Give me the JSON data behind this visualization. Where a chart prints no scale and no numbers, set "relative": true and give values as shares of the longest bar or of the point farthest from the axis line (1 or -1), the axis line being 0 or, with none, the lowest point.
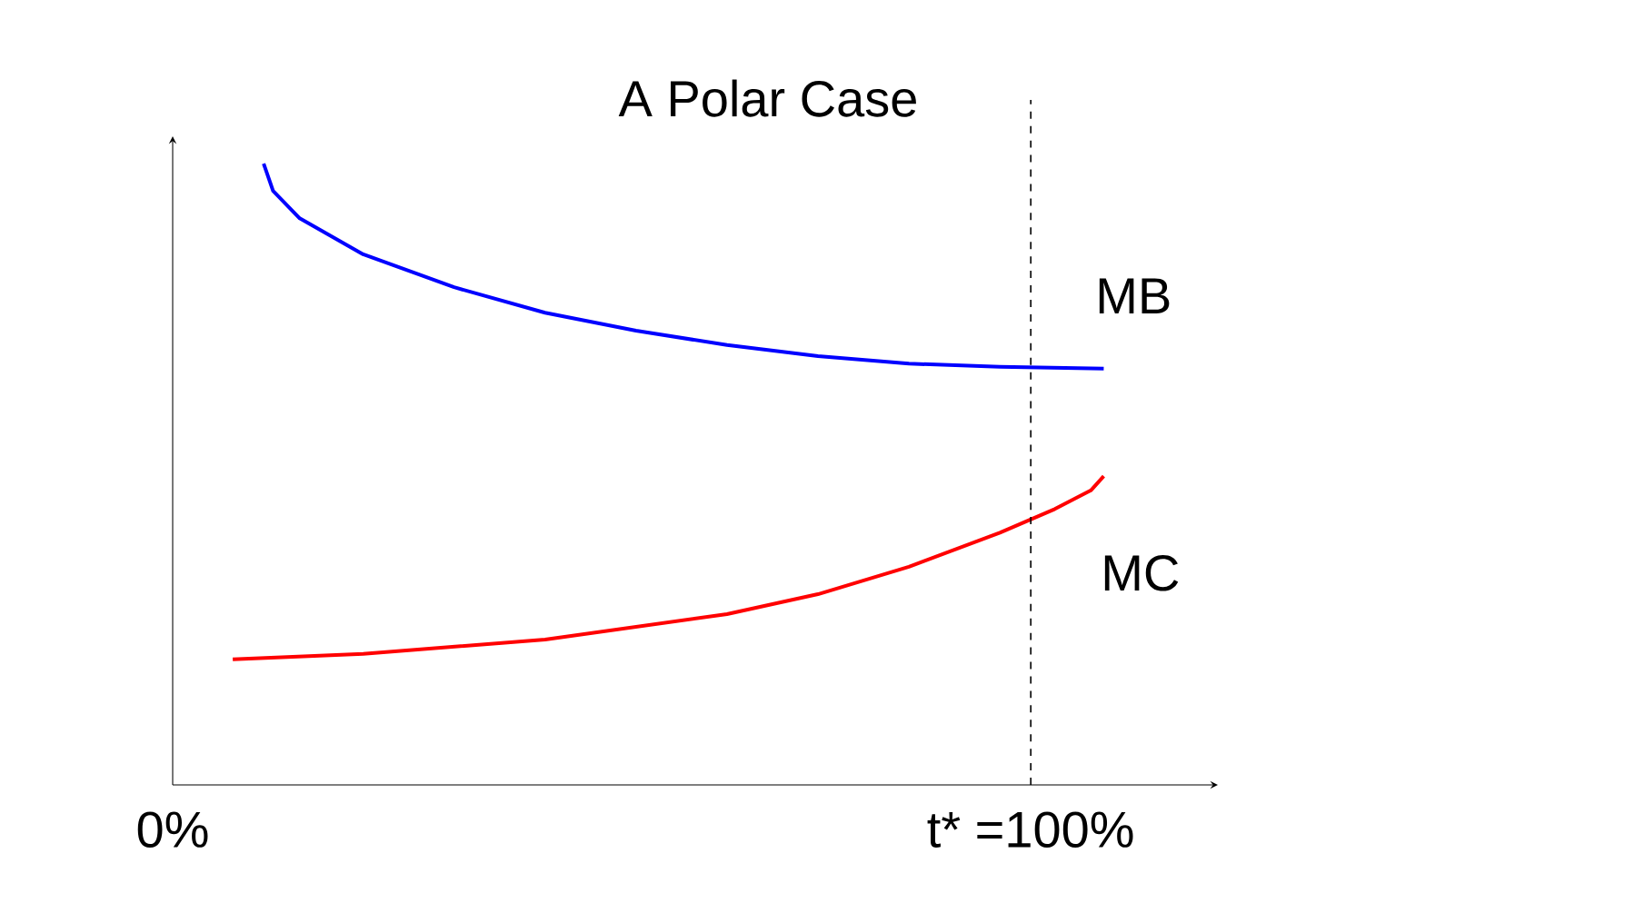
{
  "chart_data": {
    "type": "line",
    "title": "A Polar Case",
    "relative": true,
    "xlim": [
      0,
      121.8
    ],
    "xticks": [
      {
        "value": 0,
        "label": "0%"
      },
      {
        "value": 100,
        "label": "t* =100%"
      }
    ],
    "series": [
      {
        "name": "MB",
        "color": "#0000ff",
        "x": [
          10.6,
          11.7,
          14.8,
          22.2,
          32.8,
          43.4,
          54.0,
          64.6,
          75.2,
          85.8,
          96.4,
          108.5
        ],
        "values": [
          1,
          0.956,
          0.912,
          0.854,
          0.801,
          0.76,
          0.731,
          0.708,
          0.69,
          0.678,
          0.673,
          0.67
        ]
      },
      {
        "name": "MC",
        "color": "#ff0000",
        "x": [
          7.0,
          22.2,
          43.4,
          64.6,
          75.2,
          85.8,
          96.4,
          102.8,
          107.0,
          108.5
        ],
        "values": [
          0.202,
          0.211,
          0.234,
          0.275,
          0.307,
          0.351,
          0.406,
          0.444,
          0.474,
          0.497
        ]
      }
    ],
    "ref_lines": [
      {
        "axis": "x",
        "value": 100,
        "line_style": "dashed",
        "color": "#000000"
      }
    ]
  }
}
